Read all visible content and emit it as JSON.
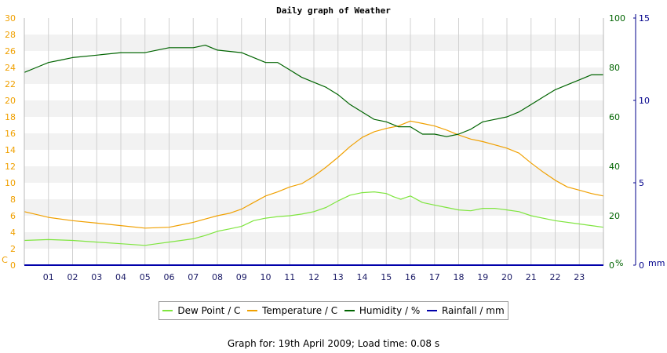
{
  "chart_data": {
    "type": "line",
    "title": "Daily graph of Weather",
    "x_ticks": [
      "01",
      "02",
      "03",
      "04",
      "05",
      "06",
      "07",
      "08",
      "09",
      "10",
      "11",
      "12",
      "13",
      "14",
      "15",
      "16",
      "17",
      "18",
      "19",
      "20",
      "21",
      "22",
      "23"
    ],
    "x_range": [
      0,
      24
    ],
    "grid": true,
    "axes": {
      "left": {
        "unit": "C",
        "range": [
          0,
          30
        ],
        "ticks": [
          0,
          2,
          4,
          6,
          8,
          10,
          12,
          14,
          16,
          18,
          20,
          22,
          24,
          26,
          28,
          30
        ],
        "color": "#f0a000"
      },
      "right1": {
        "unit": "%",
        "range": [
          0,
          100
        ],
        "ticks": [
          0,
          20,
          40,
          60,
          80,
          100
        ],
        "color": "#006400"
      },
      "right2": {
        "unit": "mm",
        "range": [
          0,
          15
        ],
        "ticks": [
          0,
          5,
          10,
          15
        ],
        "color": "#00008b"
      }
    },
    "series": [
      {
        "name": "Dew Point / C",
        "axis": "left",
        "color": "#7fe53f",
        "x": [
          0,
          1,
          2,
          3,
          4,
          5,
          5.5,
          6,
          7,
          7.5,
          8,
          8.5,
          9,
          9.5,
          10,
          10.5,
          11,
          11.5,
          12,
          12.5,
          13,
          13.5,
          14,
          14.5,
          15,
          15.3,
          15.6,
          16,
          16.5,
          17,
          17.5,
          18,
          18.5,
          19,
          19.5,
          20,
          20.5,
          21,
          22,
          23,
          24
        ],
        "y": [
          3.0,
          3.1,
          3.0,
          2.8,
          2.6,
          2.4,
          2.6,
          2.8,
          3.2,
          3.6,
          4.1,
          4.4,
          4.7,
          5.4,
          5.7,
          5.9,
          6.0,
          6.2,
          6.5,
          7.0,
          7.8,
          8.5,
          8.8,
          8.9,
          8.7,
          8.3,
          8.0,
          8.4,
          7.6,
          7.3,
          7.0,
          6.7,
          6.6,
          6.9,
          6.9,
          6.7,
          6.5,
          6.0,
          5.4,
          5.0,
          4.6
        ]
      },
      {
        "name": "Temperature / C",
        "axis": "left",
        "color": "#f0a000",
        "x": [
          0,
          1,
          2,
          3,
          4,
          5,
          6,
          6.5,
          7,
          7.5,
          8,
          8.5,
          9,
          9.5,
          10,
          10.5,
          11,
          11.5,
          12,
          12.5,
          13,
          13.5,
          14,
          14.5,
          15,
          15.5,
          16,
          16.5,
          17,
          17.5,
          18,
          18.5,
          19,
          19.5,
          20,
          20.5,
          21,
          21.5,
          22,
          22.5,
          23,
          23.5,
          24
        ],
        "y": [
          6.5,
          5.8,
          5.4,
          5.1,
          4.8,
          4.5,
          4.6,
          4.9,
          5.2,
          5.6,
          6.0,
          6.3,
          6.8,
          7.6,
          8.4,
          8.9,
          9.5,
          9.9,
          10.8,
          11.9,
          13.1,
          14.4,
          15.5,
          16.2,
          16.6,
          16.9,
          17.5,
          17.2,
          16.9,
          16.4,
          15.8,
          15.3,
          15.0,
          14.6,
          14.2,
          13.6,
          12.4,
          11.3,
          10.3,
          9.5,
          9.1,
          8.7,
          8.4
        ]
      },
      {
        "name": "Humidity / %",
        "axis": "right1",
        "color": "#006400",
        "x": [
          0,
          0.5,
          1,
          1.5,
          2,
          3,
          4,
          5,
          5.5,
          6,
          7,
          7.5,
          8,
          9,
          10,
          10.5,
          11,
          11.5,
          12,
          12.5,
          13,
          13.5,
          14,
          14.5,
          15,
          15.5,
          16,
          16.5,
          17,
          17.5,
          18,
          18.5,
          19,
          19.5,
          20,
          20.5,
          21,
          21.5,
          22,
          22.5,
          23,
          23.5,
          24
        ],
        "y": [
          78,
          80,
          82,
          83,
          84,
          85,
          86,
          86,
          87,
          88,
          88,
          89,
          87,
          86,
          82,
          82,
          79,
          76,
          74,
          72,
          69,
          65,
          62,
          59,
          58,
          56,
          56,
          53,
          53,
          52,
          53,
          55,
          58,
          59,
          60,
          62,
          65,
          68,
          71,
          73,
          75,
          77,
          77
        ]
      },
      {
        "name": "Rainfall / mm",
        "axis": "right2",
        "color": "#0000aa",
        "x": [
          0,
          24
        ],
        "y": [
          0,
          0
        ]
      }
    ]
  },
  "legend": [
    {
      "label": "Dew Point / C",
      "color": "#7fe53f"
    },
    {
      "label": "Temperature / C",
      "color": "#f0a000"
    },
    {
      "label": "Humidity / %",
      "color": "#006400"
    },
    {
      "label": "Rainfall / mm",
      "color": "#0000aa"
    }
  ],
  "footer": "Graph for: 19th April 2009; Load time: 0.08 s"
}
